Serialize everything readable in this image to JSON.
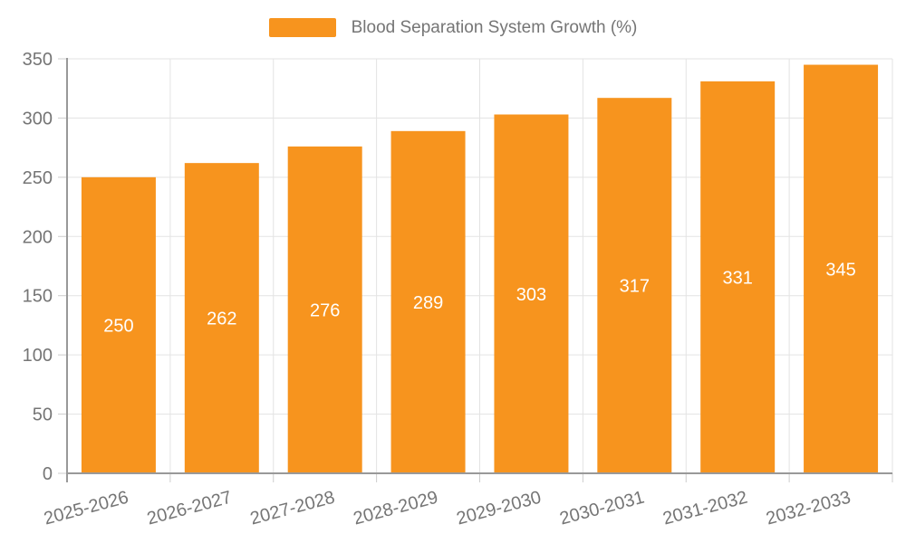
{
  "legend": {
    "label": "Blood Separation System Growth (%)"
  },
  "chart_data": {
    "type": "bar",
    "title": "",
    "legend_label": "Blood Separation System Growth (%)",
    "legend_position": "top-center",
    "categories": [
      "2025-2026",
      "2026-2027",
      "2027-2028",
      "2028-2029",
      "2029-2030",
      "2030-2031",
      "2031-2032",
      "2032-2033"
    ],
    "values": [
      250,
      262,
      276,
      289,
      303,
      317,
      331,
      345
    ],
    "xlabel": "",
    "ylabel": "",
    "ylim": [
      0,
      350
    ],
    "yticks": [
      0,
      50,
      100,
      150,
      200,
      250,
      300,
      350
    ],
    "grid": true,
    "bar_color": "#F7941E",
    "value_label_color": "#ffffff",
    "axis_text_color": "#757575",
    "gridline_color": "#e3e3e3",
    "axis_line_color": "#999999",
    "tick_color": "#cccccc",
    "x_label_rotation_deg": -15
  }
}
